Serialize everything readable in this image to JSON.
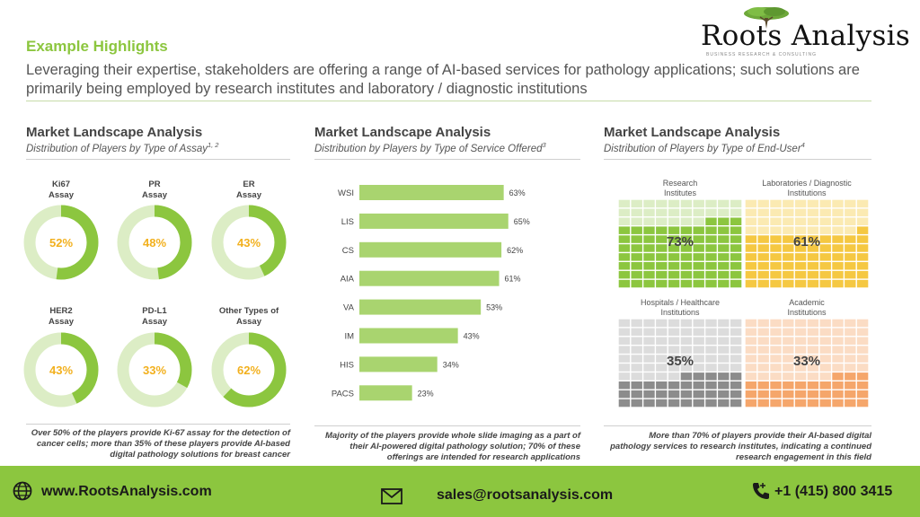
{
  "brand": {
    "name": "Roots Analysis",
    "tagline": "BUSINESS RESEARCH & CONSULTING"
  },
  "header": {
    "eyebrow": "Example Highlights",
    "headline": "Leveraging their expertise, stakeholders are offering a range of AI-based services for pathology applications; such solutions are primarily being employed by research institutes and laboratory / diagnostic institutions"
  },
  "panels": [
    {
      "title": "Market Landscape Analysis",
      "subtitle": "Distribution of Players by Type of Assay",
      "subtitle_sup": "1, 2",
      "note": "Over 50% of the players provide Ki-67 assay for the detection of cancer cells; more than 35% of these players provide AI-based digital pathology solutions for breast cancer"
    },
    {
      "title": "Market Landscape Analysis",
      "subtitle": "Distribution by Players by Type of Service Offered",
      "subtitle_sup": "3",
      "note": "Majority of the players provide whole slide imaging as a part of their AI-powered digital pathology solution; 70% of these offerings are intended for research applications"
    },
    {
      "title": "Market Landscape Analysis",
      "subtitle": "Distribution of Players by Type of End-User",
      "subtitle_sup": "4",
      "note": "More than 70% of players provide their AI-based digital pathology services to research institutes, indicating a continued research engagement in this field"
    }
  ],
  "chart_data": [
    {
      "type": "pie",
      "categories": [
        "Ki67 Assay",
        "PR Assay",
        "ER Assay",
        "HER2 Assay",
        "PD-L1 Assay",
        "Other Types of Assay"
      ],
      "label_lines": [
        [
          "Ki67",
          "Assay"
        ],
        [
          "PR",
          "Assay"
        ],
        [
          "ER",
          "Assay"
        ],
        [
          "HER2",
          "Assay"
        ],
        [
          "PD-L1",
          "Assay"
        ],
        [
          "Other Types of",
          "Assay"
        ]
      ],
      "values": [
        52,
        48,
        43,
        43,
        33,
        62
      ],
      "value_labels": [
        "52%",
        "48%",
        "43%",
        "43%",
        "33%",
        "62%"
      ],
      "colors": {
        "fill": "#8cc63f",
        "track": "#dcedc5",
        "label": "#f2b01e"
      }
    },
    {
      "type": "bar",
      "orientation": "horizontal",
      "categories": [
        "WSI",
        "LIS",
        "CS",
        "AIA",
        "VA",
        "IM",
        "HIS",
        "PACS"
      ],
      "values": [
        63,
        65,
        62,
        61,
        53,
        43,
        34,
        23
      ],
      "value_labels": [
        "63%",
        "65%",
        "62%",
        "61%",
        "53%",
        "43%",
        "34%",
        "23%"
      ],
      "xlim": [
        0,
        100
      ],
      "grid": false,
      "colors": {
        "bar": "#a9d46f"
      }
    },
    {
      "type": "waffle",
      "categories": [
        "Research Institutes",
        "Laboratories / Diagnostic Institutions",
        "Hospitals / Healthcare Institutions",
        "Academic Institutions"
      ],
      "label_lines": [
        [
          "Research",
          "Institutes"
        ],
        [
          "Laboratories / Diagnostic",
          "Institutions"
        ],
        [
          "Hospitals / Healthcare",
          "Institutions"
        ],
        [
          "Academic",
          "Institutions"
        ]
      ],
      "values": [
        73,
        61,
        35,
        33
      ],
      "value_labels": [
        "73%",
        "61%",
        "35%",
        "33%"
      ],
      "colors": {
        "filled": [
          "#8cc63f",
          "#f5c842",
          "#8c8c8c",
          "#f5a66b"
        ],
        "empty": [
          "#dcedc5",
          "#fbeab2",
          "#dcdcdc",
          "#fbdcc4"
        ]
      }
    }
  ],
  "footer": {
    "website": "www.RootsAnalysis.com",
    "email": "sales@rootsanalysis.com",
    "phone": "+1 (415) 800 3415",
    "colors": {
      "background": "#8cc63f"
    }
  }
}
